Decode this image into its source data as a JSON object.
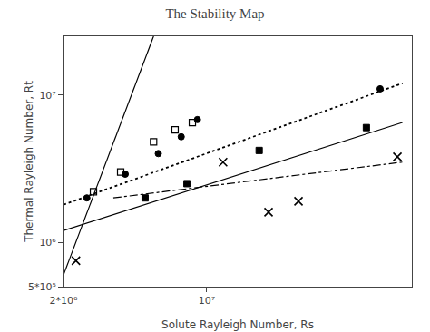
{
  "chart_data": {
    "type": "scatter",
    "title": "The Stability Map",
    "xlabel": "Solute Rayleigh Number, Rs",
    "ylabel": "Thermal Rayleigh Number, Rt",
    "log": true,
    "grid": false,
    "xlim": [
      2000000.0,
      100000000.0
    ],
    "ylim": [
      500000.0,
      25000000.0
    ],
    "xticks": [
      {
        "value": 2000000.0,
        "label": "2*10⁶"
      },
      {
        "value": 10000000.0,
        "label": "10⁷"
      }
    ],
    "yticks": [
      {
        "value": 500000.0,
        "label": "5*10⁵"
      },
      {
        "value": 1000000.0,
        "label": "10⁶"
      },
      {
        "value": 10000000.0,
        "label": "10⁷"
      }
    ],
    "series": [
      {
        "type": "line",
        "line_style": "solid",
        "color": "black",
        "x": [
          2000000.0,
          5500000.0
        ],
        "values": [
          600000.0,
          25000000.0
        ]
      },
      {
        "type": "line",
        "line_style": "dotted",
        "color": "black",
        "x": [
          2000000.0,
          90000000.0
        ],
        "values": [
          1800000.0,
          12000000.0
        ]
      },
      {
        "type": "line",
        "line_style": "solid",
        "color": "black",
        "x": [
          2000000.0,
          90000000.0
        ],
        "values": [
          1200000.0,
          6500000.0
        ]
      },
      {
        "type": "line",
        "line_style": "dashdot",
        "color": "black",
        "x": [
          3500000.0,
          90000000.0
        ],
        "values": [
          2000000.0,
          3500000.0
        ]
      },
      {
        "type": "scatter",
        "marker": "square-open",
        "color": "black",
        "x": [
          2800000.0,
          3800000.0,
          5500000.0,
          7000000.0,
          8500000.0
        ],
        "values": [
          2200000.0,
          3000000.0,
          4800000.0,
          5800000.0,
          6500000.0
        ]
      },
      {
        "type": "scatter",
        "marker": "circle",
        "color": "black",
        "x": [
          2600000.0,
          4000000.0,
          5800000.0,
          7500000.0,
          9000000.0,
          70000000.0
        ],
        "values": [
          2000000.0,
          2900000.0,
          4000000.0,
          5200000.0,
          6800000.0,
          11000000.0
        ]
      },
      {
        "type": "scatter",
        "marker": "square",
        "color": "black",
        "x": [
          5000000.0,
          8000000.0,
          18000000.0,
          60000000.0
        ],
        "values": [
          2000000.0,
          2500000.0,
          4200000.0,
          6000000.0
        ]
      },
      {
        "type": "scatter",
        "marker": "x",
        "color": "black",
        "x": [
          2300000.0,
          12000000.0,
          20000000.0,
          28000000.0,
          85000000.0
        ],
        "values": [
          750000.0,
          3500000.0,
          1600000.0,
          1900000.0,
          3800000.0
        ]
      }
    ]
  }
}
